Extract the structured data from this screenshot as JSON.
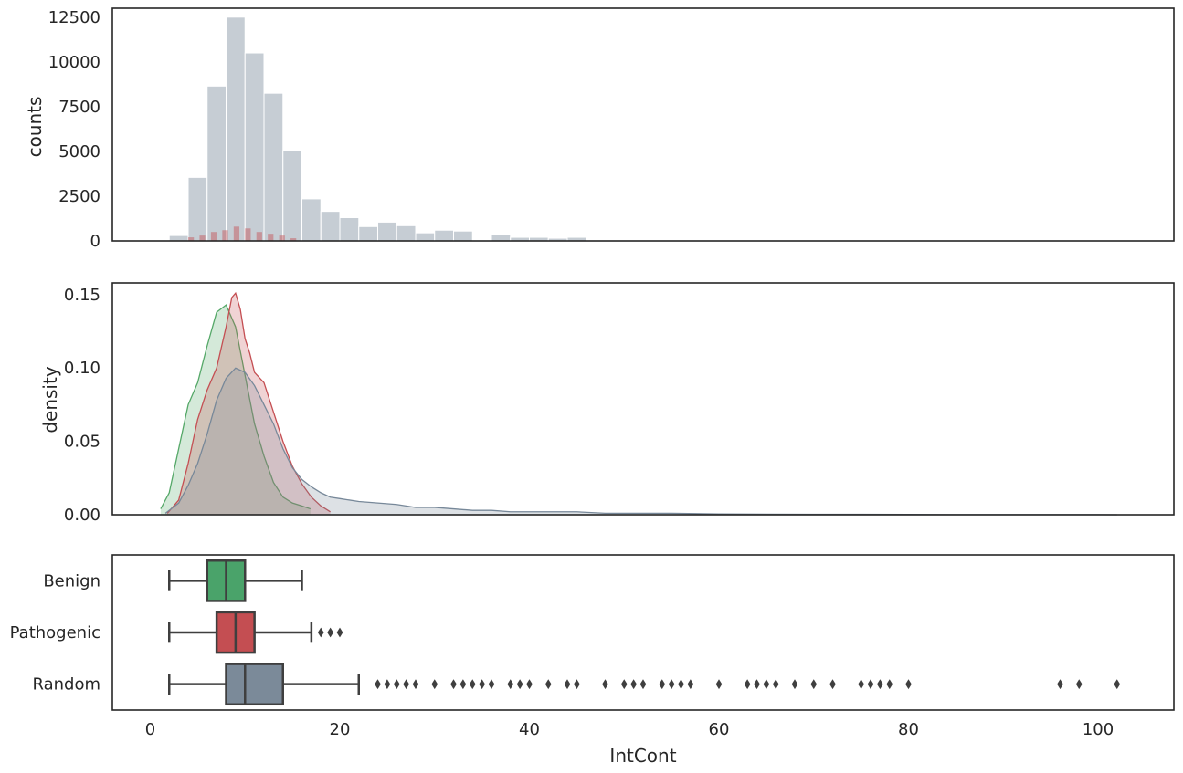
{
  "chart_data": [
    {
      "type": "bar",
      "panel": "histogram",
      "ylabel": "counts",
      "xlim": [
        -4,
        108
      ],
      "ylim": [
        0,
        13000
      ],
      "yticks": [
        0,
        2500,
        5000,
        7500,
        10000,
        12500
      ],
      "ytick_labels": [
        "0",
        "2500",
        "5000",
        "7500",
        "10000",
        "12500"
      ],
      "grid": false,
      "series": [
        {
          "color": "#778899",
          "bin_edges": [
            2,
            4,
            6,
            8,
            10,
            12,
            14,
            16,
            18,
            20,
            22,
            24,
            26,
            28,
            30,
            32,
            34,
            36,
            38,
            40,
            42,
            44,
            46,
            48,
            50
          ],
          "values": [
            300,
            3550,
            8650,
            12500,
            10500,
            8250,
            5050,
            2350,
            1650,
            1300,
            800,
            1050,
            850,
            450,
            600,
            550,
            0,
            350,
            200,
            200,
            150,
            200,
            50,
            40
          ]
        },
        {
          "color": "#c44e52",
          "bin_edges": [
            4.0,
            4.6,
            5.2,
            5.8,
            6.4,
            7.0,
            7.6,
            8.2,
            8.8,
            9.4,
            10.0,
            10.6,
            11.2,
            11.8,
            12.4,
            13.0,
            13.6,
            14.2,
            14.8,
            15.4,
            16.0
          ],
          "values": [
            200,
            0,
            300,
            0,
            500,
            0,
            600,
            0,
            800,
            0,
            700,
            0,
            500,
            0,
            400,
            0,
            300,
            0,
            150,
            0
          ]
        }
      ]
    },
    {
      "type": "area",
      "panel": "density",
      "ylabel": "density",
      "xlim": [
        -4,
        108
      ],
      "ylim": [
        0,
        0.158
      ],
      "yticks": [
        0.0,
        0.05,
        0.1,
        0.15
      ],
      "ytick_labels": [
        "0.00",
        "0.05",
        "0.10",
        "0.15"
      ],
      "grid": false,
      "series": [
        {
          "color": "#55a868",
          "x": [
            1.1,
            2,
            3,
            4,
            5,
            6,
            7,
            8,
            9,
            10,
            11,
            12,
            13,
            14,
            15,
            16,
            16.9
          ],
          "y": [
            0.004,
            0.015,
            0.045,
            0.075,
            0.09,
            0.115,
            0.138,
            0.143,
            0.128,
            0.095,
            0.062,
            0.04,
            0.022,
            0.012,
            0.008,
            0.006,
            0.004
          ]
        },
        {
          "color": "#c44e52",
          "x": [
            1.8,
            3,
            4,
            5,
            6,
            7,
            8,
            8.6,
            9,
            9.5,
            10,
            10.5,
            11,
            12,
            13,
            14,
            15,
            16,
            17,
            18,
            19
          ],
          "y": [
            0.001,
            0.01,
            0.035,
            0.065,
            0.085,
            0.1,
            0.128,
            0.148,
            0.151,
            0.14,
            0.12,
            0.11,
            0.097,
            0.09,
            0.07,
            0.05,
            0.033,
            0.021,
            0.012,
            0.006,
            0.002
          ]
        },
        {
          "color": "#778899",
          "x": [
            1.6,
            3,
            4,
            5,
            6,
            7,
            8,
            9,
            10,
            11,
            12,
            13,
            14,
            15,
            16,
            17,
            18,
            19,
            20,
            22,
            24,
            26,
            28,
            30,
            32,
            34,
            36,
            38,
            40,
            42,
            45,
            48,
            50,
            55,
            60,
            65,
            70,
            75,
            80,
            85,
            90,
            95,
            100,
            102
          ],
          "y": [
            0.001,
            0.008,
            0.02,
            0.035,
            0.055,
            0.078,
            0.093,
            0.1,
            0.097,
            0.088,
            0.075,
            0.062,
            0.045,
            0.032,
            0.024,
            0.019,
            0.015,
            0.012,
            0.011,
            0.009,
            0.008,
            0.007,
            0.005,
            0.005,
            0.004,
            0.003,
            0.003,
            0.002,
            0.002,
            0.002,
            0.002,
            0.001,
            0.001,
            0.001,
            0.0005,
            0.0004,
            0.0003,
            0.0003,
            0.0002,
            0.0001,
            0.0001,
            0.0001,
            0.0001,
            0.0
          ]
        }
      ]
    },
    {
      "type": "box",
      "panel": "boxplot",
      "xlabel": "IntCont",
      "xlim": [
        -4,
        108
      ],
      "xticks": [
        0,
        20,
        40,
        60,
        80,
        100
      ],
      "xtick_labels": [
        "0",
        "20",
        "40",
        "60",
        "80",
        "100"
      ],
      "categories": [
        "Benign",
        "Pathogenic",
        "Random"
      ],
      "grid": false,
      "boxes": [
        {
          "color": "#4aa36a",
          "whisker_low": 2,
          "q1": 6,
          "median": 8,
          "q3": 10,
          "whisker_high": 16,
          "outliers": []
        },
        {
          "color": "#c44e52",
          "whisker_low": 2,
          "q1": 7,
          "median": 9,
          "q3": 11,
          "whisker_high": 17,
          "outliers": [
            18,
            19,
            20
          ]
        },
        {
          "color": "#7b8a99",
          "whisker_low": 2,
          "q1": 8,
          "median": 10,
          "q3": 14,
          "whisker_high": 22,
          "outliers": [
            24,
            25,
            26,
            27,
            28,
            30,
            32,
            33,
            34,
            35,
            36,
            38,
            39,
            40,
            42,
            44,
            45,
            48,
            50,
            51,
            52,
            54,
            55,
            56,
            57,
            60,
            63,
            64,
            65,
            66,
            68,
            70,
            72,
            75,
            76,
            77,
            78,
            80,
            96,
            98,
            102
          ]
        }
      ]
    }
  ]
}
